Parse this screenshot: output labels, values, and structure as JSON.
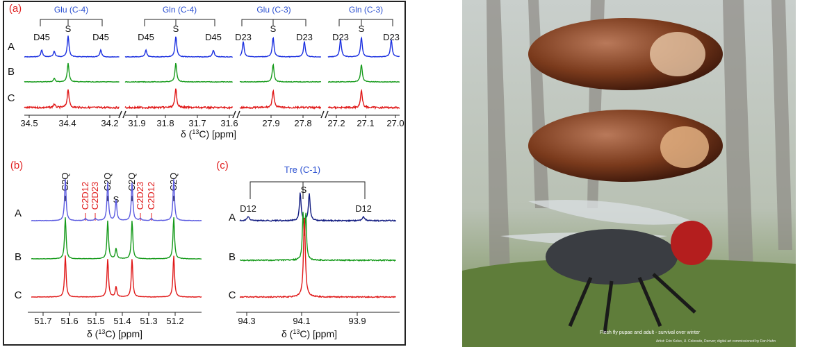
{
  "panel_a": {
    "label": "(a)",
    "rows": [
      "A",
      "B",
      "C"
    ],
    "groups": [
      {
        "title": "Glu (C-4)",
        "peaks": [
          "D45",
          "S",
          "D45"
        ],
        "ticks": [
          "34.5",
          "34.4",
          "34.2"
        ]
      },
      {
        "title": "Gln (C-4)",
        "peaks": [
          "D45",
          "S",
          "D45"
        ],
        "ticks": [
          "31.9",
          "31.8",
          "31.7",
          "31.6"
        ]
      },
      {
        "title": "Glu (C-3)",
        "peaks": [
          "D23",
          "S",
          "D23"
        ],
        "ticks": [
          "27.9",
          "27.8"
        ]
      },
      {
        "title": "Gln (C-3)",
        "peaks": [
          "D23",
          "S",
          "D23"
        ],
        "ticks": [
          "27.2",
          "27.1",
          "27.0"
        ]
      }
    ],
    "axis_label": {
      "pre": "δ (",
      "sup": "13",
      "post": "C) [ppm]"
    }
  },
  "panel_b": {
    "label": "(b)",
    "rows": [
      "A",
      "B",
      "C"
    ],
    "peak_labels": [
      "C2Q",
      "C2D12",
      "C2D23",
      "C2Q",
      "S",
      "C2Q",
      "C2D23",
      "C2D12",
      "C2Q"
    ],
    "ticks": [
      "51.7",
      "51.6",
      "51.5",
      "51.4",
      "51.3",
      "51.2"
    ],
    "axis_label": {
      "pre": "δ (",
      "sup": "13",
      "post": "C) [ppm]"
    }
  },
  "panel_c": {
    "label": "(c)",
    "title": "Tre (C-1)",
    "rows": [
      "A",
      "B",
      "C"
    ],
    "peaks": [
      "D12",
      "S",
      "D12"
    ],
    "ticks": [
      "94.3",
      "94.1",
      "93.9"
    ],
    "axis_label": {
      "pre": "δ (",
      "sup": "13",
      "post": "C) [ppm]"
    }
  },
  "illustration": {
    "caption": "Flesh fly pupae and adult - survival over winter",
    "credit": "Artist: Erin Kelso, U. Colorado, Denver; digital art commissioned by Dan Hahn"
  }
}
